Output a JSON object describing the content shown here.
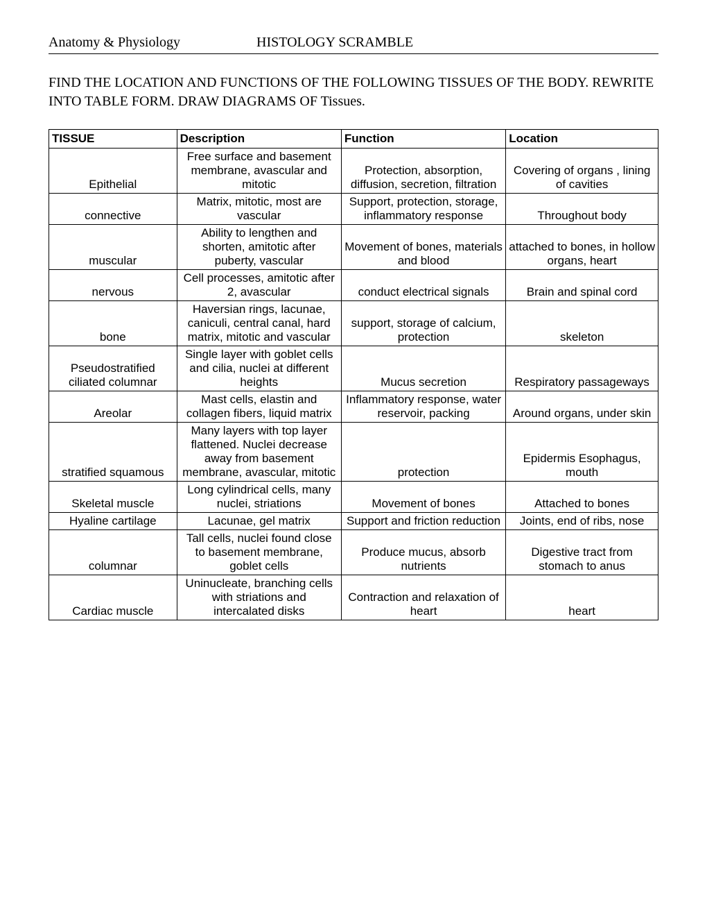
{
  "header": {
    "left": "Anatomy & Physiology",
    "right": "HISTOLOGY SCRAMBLE"
  },
  "instruction": "FIND THE LOCATION AND FUNCTIONS OF THE FOLLOWING TISSUES OF THE BODY. REWRITE INTO TABLE FORM. DRAW DIAGRAMS OF Tissues.",
  "table": {
    "columns": [
      "TISSUE",
      "Description",
      "Function",
      "Location"
    ],
    "rows": [
      {
        "tissue": "Epithelial",
        "description": "Free surface and basement membrane, avascular and mitotic",
        "function": "Protection, absorption, diffusion, secretion, filtration",
        "location": "Covering of organs , lining of cavities"
      },
      {
        "tissue": "connective",
        "description": "Matrix, mitotic, most are vascular",
        "function": "Support, protection, storage, inflammatory response",
        "location": "Throughout body"
      },
      {
        "tissue": "muscular",
        "description": "Ability to lengthen and shorten, amitotic after puberty, vascular",
        "function": "Movement of bones, materials and blood",
        "location": "attached to bones, in hollow organs, heart"
      },
      {
        "tissue": "nervous",
        "description": "Cell processes, amitotic after 2, avascular",
        "function": "conduct electrical signals",
        "location": "Brain and spinal cord"
      },
      {
        "tissue": "bone",
        "description": "Haversian rings, lacunae, caniculi, central canal, hard matrix, mitotic and vascular",
        "function": "support, storage of calcium, protection",
        "location": "skeleton"
      },
      {
        "tissue": "Pseudostratified ciliated columnar",
        "description": "Single layer with goblet cells and cilia, nuclei at different heights",
        "function": "Mucus secretion",
        "location": "Respiratory passageways"
      },
      {
        "tissue": "Areolar",
        "description": "Mast cells, elastin and collagen fibers, liquid matrix",
        "function": "Inflammatory response, water reservoir, packing",
        "location": "Around organs, under skin"
      },
      {
        "tissue": "stratified squamous",
        "description": "Many layers with top layer flattened. Nuclei decrease away from basement membrane, avascular, mitotic",
        "function": "protection",
        "location": "Epidermis Esophagus, mouth"
      },
      {
        "tissue": "Skeletal muscle",
        "description": "Long cylindrical cells, many nuclei, striations",
        "function": "Movement of bones",
        "location": "Attached to bones"
      },
      {
        "tissue": "Hyaline cartilage",
        "description": "Lacunae, gel matrix",
        "function": "Support and friction reduction",
        "location": "Joints, end of ribs, nose"
      },
      {
        "tissue": "columnar",
        "description": "Tall cells, nuclei found close to basement membrane, goblet cells",
        "function": "Produce mucus, absorb nutrients",
        "location": "Digestive tract from stomach to anus"
      },
      {
        "tissue": "Cardiac muscle",
        "description": "Uninucleate, branching cells with striations and intercalated disks",
        "function": "Contraction and relaxation of heart",
        "location": "heart"
      }
    ]
  }
}
